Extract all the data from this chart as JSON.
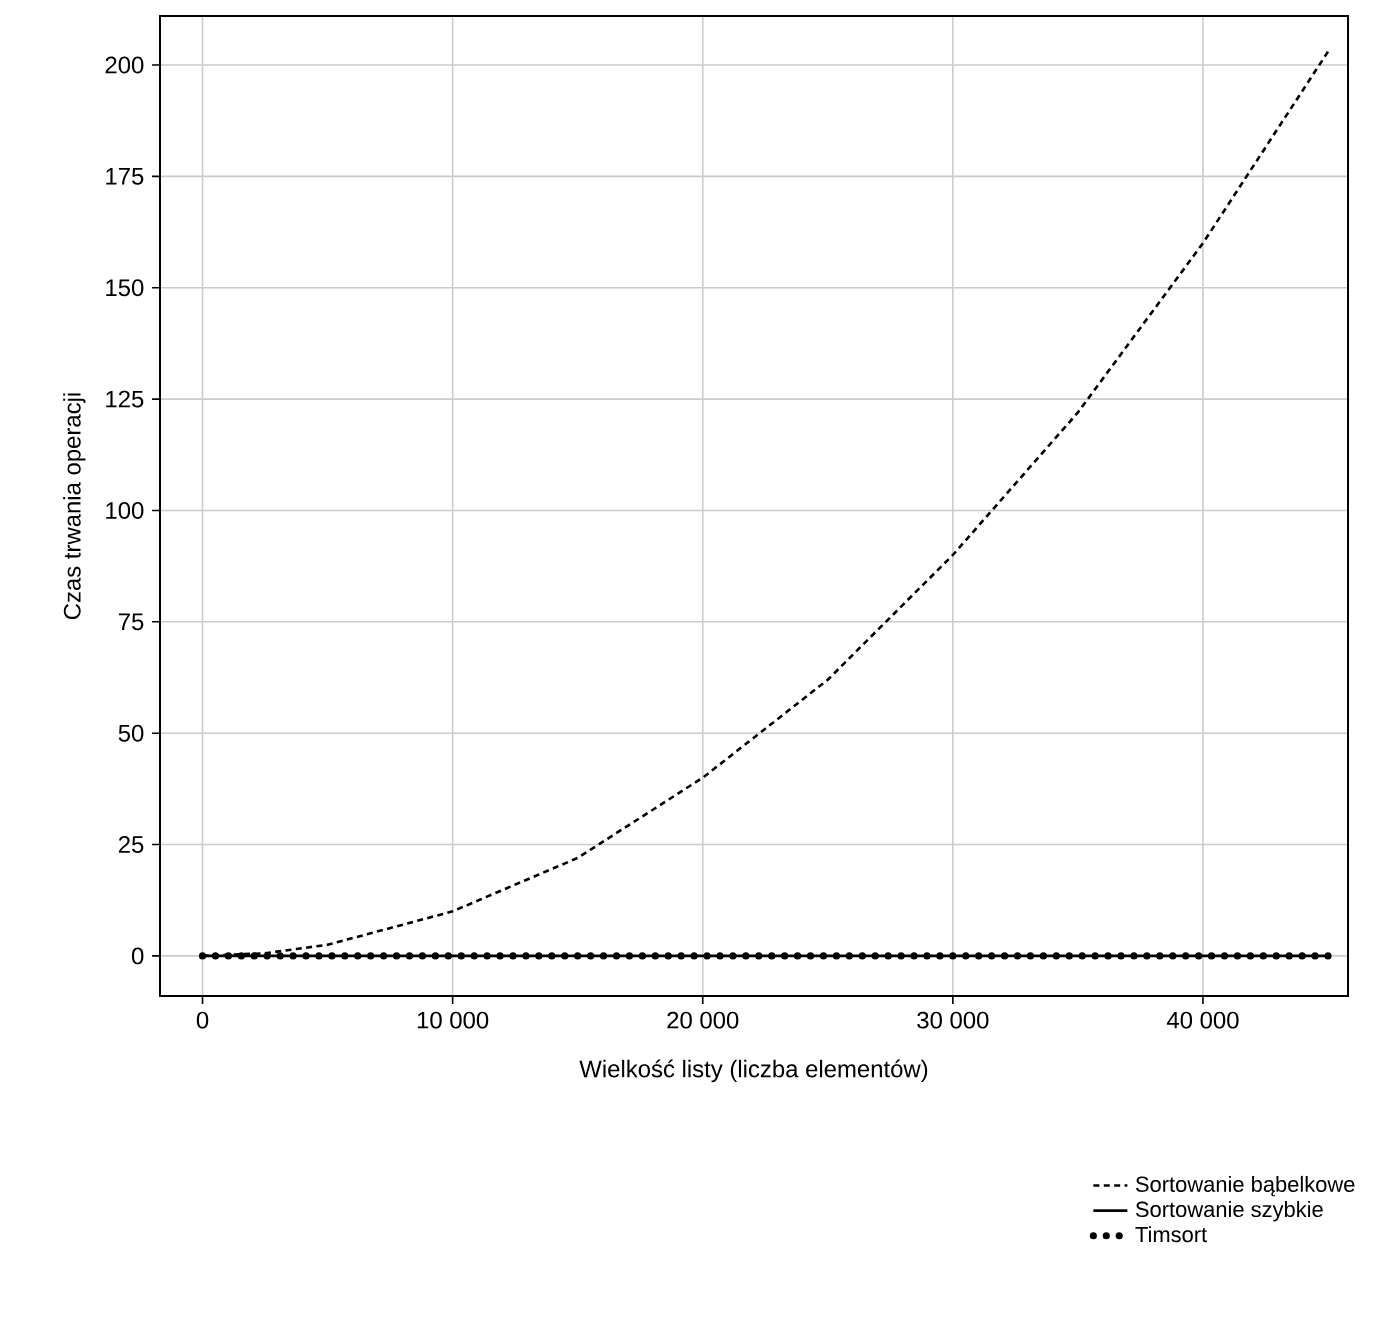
{
  "chart_data": {
    "type": "line",
    "xlabel": "Wielkość listy (liczba elementów)",
    "ylabel": "Czas trwania operacji",
    "xlim": [
      -1700,
      45800
    ],
    "ylim": [
      -9,
      211
    ],
    "xticks": [
      0,
      {
        "value": 10000,
        "label": "10 000"
      },
      {
        "value": 20000,
        "label": "20 000"
      },
      {
        "value": 30000,
        "label": "30 000"
      },
      {
        "value": 40000,
        "label": "40 000"
      }
    ],
    "yticks": [
      0,
      25,
      50,
      75,
      100,
      125,
      150,
      175,
      200
    ],
    "grid": true,
    "legend": "bottom right",
    "marker": "none",
    "x": [
      0,
      2500,
      5000,
      10000,
      15000,
      20000,
      25000,
      30000,
      35000,
      40000,
      45000
    ],
    "series": [
      {
        "name": "Sortowanie bąbelkowe",
        "color": "#000000",
        "line_style": "dashed",
        "values": [
          0,
          0.6,
          2.5,
          10,
          22,
          40,
          62,
          90,
          122,
          160,
          203
        ]
      },
      {
        "name": "Sortowanie szybkie",
        "color": "#000000",
        "line_style": "solid",
        "values": [
          0,
          0,
          0,
          0,
          0,
          0,
          0,
          0,
          0,
          0,
          0
        ]
      },
      {
        "name": "Timsort",
        "color": "#000000",
        "line_style": "dotted",
        "values": [
          0,
          0,
          0,
          0,
          0,
          0,
          0,
          0,
          0,
          0,
          0
        ]
      }
    ]
  }
}
